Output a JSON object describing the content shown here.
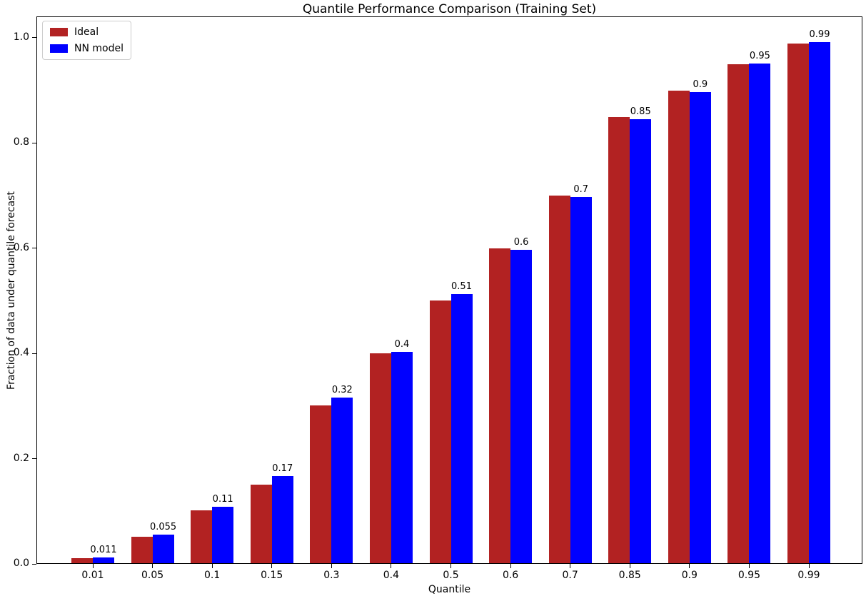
{
  "chart_data": {
    "type": "bar",
    "title": "Quantile Performance Comparison (Training Set)",
    "xlabel": "Quantile",
    "ylabel": "Fraction of data under quantile forecast",
    "categories": [
      "0.01",
      "0.05",
      "0.1",
      "0.15",
      "0.3",
      "0.4",
      "0.5",
      "0.6",
      "0.7",
      "0.85",
      "0.9",
      "0.95",
      "0.99"
    ],
    "series": [
      {
        "name": "Ideal",
        "color": "#b22222",
        "values": [
          0.01,
          0.05,
          0.1,
          0.15,
          0.3,
          0.4,
          0.5,
          0.6,
          0.7,
          0.85,
          0.9,
          0.95,
          0.99
        ]
      },
      {
        "name": "NN model",
        "color": "#0000ff",
        "values": [
          0.011,
          0.055,
          0.107,
          0.166,
          0.315,
          0.403,
          0.513,
          0.597,
          0.698,
          0.846,
          0.897,
          0.951,
          0.993
        ]
      }
    ],
    "bar_labels": [
      "0.011",
      "0.055",
      "0.11",
      "0.17",
      "0.32",
      "0.4",
      "0.51",
      "0.6",
      "0.7",
      "0.85",
      "0.9",
      "0.95",
      "0.99"
    ],
    "yticks": [
      "0.0",
      "0.2",
      "0.4",
      "0.6",
      "0.8",
      "1.0"
    ],
    "ylim": [
      0,
      1.04
    ],
    "legend_position": "upper left",
    "grid": false
  }
}
